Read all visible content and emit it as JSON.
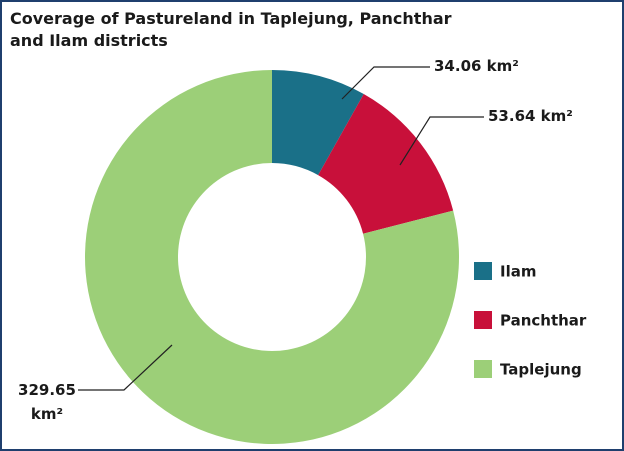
{
  "chart_data": {
    "type": "donut",
    "title": "Coverage of Pastureland in Taplejung, Panchthar and Ilam districts",
    "categories": [
      "Ilam",
      "Panchthar",
      "Taplejung"
    ],
    "values": [
      34.06,
      53.64,
      329.65
    ],
    "value_labels": [
      "34.06 km²",
      "53.64 km²",
      "329.65 km²"
    ],
    "colors": [
      "#1a7088",
      "#c8103a",
      "#9ccf78"
    ],
    "legend": "right"
  }
}
